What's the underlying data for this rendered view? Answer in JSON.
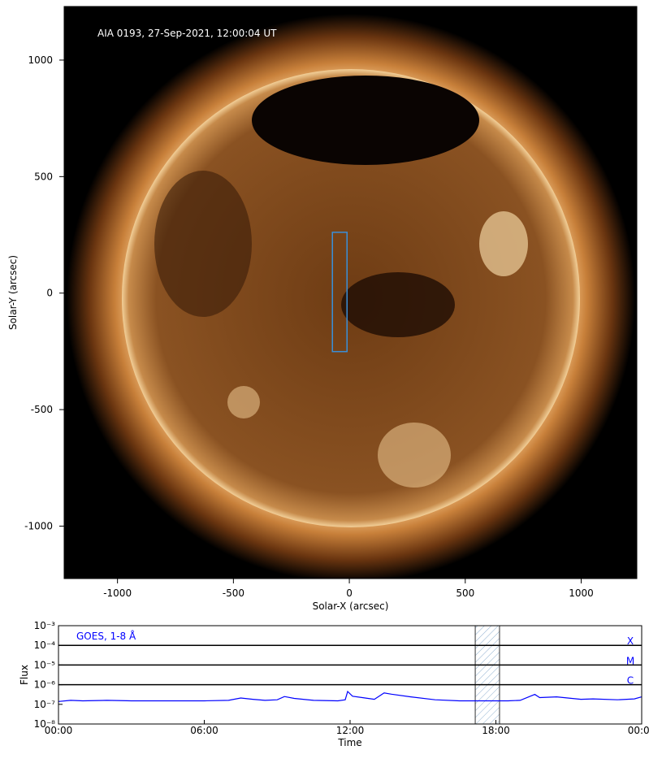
{
  "chart_data": [
    {
      "type": "image",
      "annotation": "AIA 0193, 27-Sep-2021, 12:00:04 UT",
      "xlabel": "Solar-X (arcsec)",
      "ylabel": "Solar-Y (arcsec)",
      "xlim": [
        -1230,
        1240
      ],
      "ylim": [
        -1225,
        1230
      ],
      "xticks": [
        -1000,
        -500,
        0,
        500,
        1000
      ],
      "yticks": [
        -1000,
        -500,
        0,
        500,
        1000
      ],
      "box": {
        "x": [
          -73,
          -10
        ],
        "y": [
          -251,
          261
        ],
        "color": "#3a8fd8"
      }
    },
    {
      "type": "line",
      "annotation": "GOES, 1-8 Å",
      "annotation_color": "#0000ff",
      "xlabel": "Time",
      "ylabel": "Flux",
      "xlim": [
        0,
        24
      ],
      "ylim": [
        1e-08,
        0.001
      ],
      "ylog": true,
      "xticks": [
        {
          "value": 0,
          "label": "00:00"
        },
        {
          "value": 6,
          "label": "06:00"
        },
        {
          "value": 12,
          "label": "12:00"
        },
        {
          "value": 18,
          "label": "18:00"
        },
        {
          "value": 24,
          "label": "00:00"
        }
      ],
      "yticks": [
        {
          "value": 1e-08,
          "label": "10⁻⁸"
        },
        {
          "value": 1e-07,
          "label": "10⁻⁷"
        },
        {
          "value": 1e-06,
          "label": "10⁻⁶"
        },
        {
          "value": 1e-05,
          "label": "10⁻⁵"
        },
        {
          "value": 0.0001,
          "label": "10⁻⁴"
        },
        {
          "value": 0.001,
          "label": "10⁻³"
        }
      ],
      "flare_classes": [
        {
          "label": "X",
          "value": 0.0001
        },
        {
          "label": "M",
          "value": 1e-05
        },
        {
          "label": "C",
          "value": 1e-06
        }
      ],
      "highlight": [
        17.15,
        18.15
      ],
      "x": [
        0,
        0.5,
        1,
        2,
        3,
        4,
        5,
        6,
        7,
        7.5,
        8,
        8.5,
        9,
        9.3,
        9.7,
        10.5,
        11.5,
        11.8,
        11.9,
        12.1,
        12.5,
        13,
        13.4,
        13.7,
        14.5,
        15.5,
        16.5,
        17.5,
        18.5,
        19,
        19.6,
        19.8,
        20.5,
        21.5,
        22,
        23,
        23.7,
        24
      ],
      "series": [
        {
          "color": "#0000ff",
          "values": [
            1.4e-07,
            1.6e-07,
            1.5e-07,
            1.6e-07,
            1.5e-07,
            1.5e-07,
            1.5e-07,
            1.5e-07,
            1.6e-07,
            2.1e-07,
            1.8e-07,
            1.6e-07,
            1.7e-07,
            2.5e-07,
            2e-07,
            1.6e-07,
            1.5e-07,
            1.7e-07,
            4.5e-07,
            2.6e-07,
            2.2e-07,
            1.8e-07,
            3.8e-07,
            3.3e-07,
            2.4e-07,
            1.7e-07,
            1.5e-07,
            1.5e-07,
            1.5e-07,
            1.6e-07,
            3.2e-07,
            2.2e-07,
            2.4e-07,
            1.8e-07,
            1.9e-07,
            1.7e-07,
            1.9e-07,
            2.4e-07
          ]
        }
      ]
    }
  ]
}
